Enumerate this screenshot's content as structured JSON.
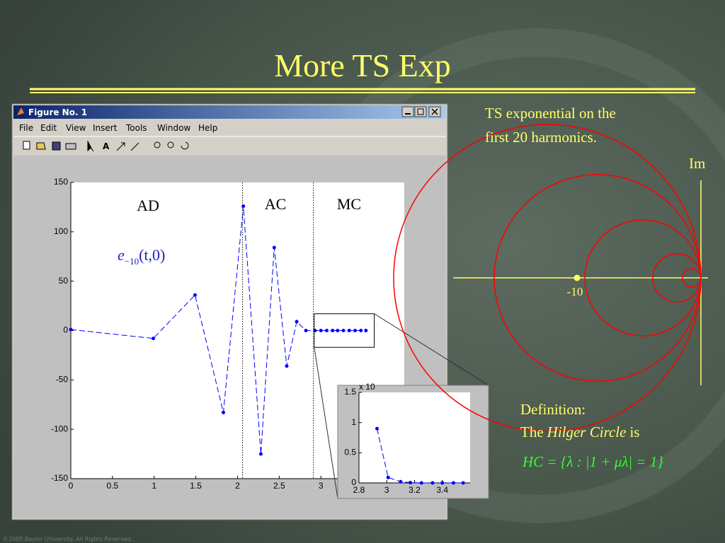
{
  "slide": {
    "title": "More TS Exp",
    "footer": "©2000 Baylor University. All Rights Reserved.",
    "note_lines": [
      "TS exponential on the",
      "first 20 harmonics."
    ],
    "axis_label_im": "Im",
    "point_label": "-10",
    "definition": {
      "heading": "Definition:",
      "prefix": "The",
      "term": "Hilger Circle",
      "suffix": "is",
      "formula": "HC = {λ : |1 + μλ| = 1}"
    }
  },
  "window": {
    "title": "Figure No. 1",
    "menu": [
      "File",
      "Edit",
      "View",
      "Insert",
      "Tools",
      "Window",
      "Help"
    ]
  },
  "chart_data": [
    {
      "type": "line",
      "color": "#0000ff",
      "x": [
        0,
        0.99,
        1.49,
        1.83,
        2.07,
        2.28,
        2.44,
        2.59,
        2.71,
        2.82,
        2.93,
        3.0,
        3.07,
        3.14,
        3.2,
        3.27,
        3.34,
        3.41,
        3.48,
        3.54
      ],
      "values": [
        1,
        -8,
        36,
        -83,
        126,
        -125,
        84,
        -36,
        9,
        0,
        0,
        0,
        0,
        0,
        0,
        0,
        0,
        0,
        0,
        0
      ],
      "xlim": [
        0,
        4
      ],
      "ylim": [
        -150,
        150
      ],
      "xticks": [
        0,
        0.5,
        1,
        1.5,
        2,
        2.5,
        3
      ],
      "yticks": [
        -150,
        -100,
        -50,
        0,
        50,
        100,
        150
      ],
      "region_bounds": [
        2.06,
        2.91
      ],
      "region_labels": [
        "AD",
        "AC",
        "MC"
      ],
      "annotation": {
        "base": "e",
        "subscript": "−10",
        "args": "(t,0)"
      },
      "zoom_box": {
        "xlim": [
          2.92,
          3.64
        ],
        "ylim": [
          -17,
          17
        ]
      }
    },
    {
      "type": "line",
      "color": "#0000ff",
      "exponent_label": "x 10",
      "x": [
        2.93,
        3.01,
        3.1,
        3.17,
        3.25,
        3.33,
        3.4,
        3.48,
        3.55
      ],
      "values": [
        0.9,
        0.09,
        0.02,
        0.005,
        0,
        0,
        0,
        0,
        0
      ],
      "xlim": [
        2.8,
        3.6
      ],
      "ylim": [
        0,
        1.5
      ],
      "xticks": [
        2.8,
        3,
        3.2,
        3.4
      ],
      "yticks": [
        0,
        0.5,
        1,
        1.5
      ]
    }
  ]
}
